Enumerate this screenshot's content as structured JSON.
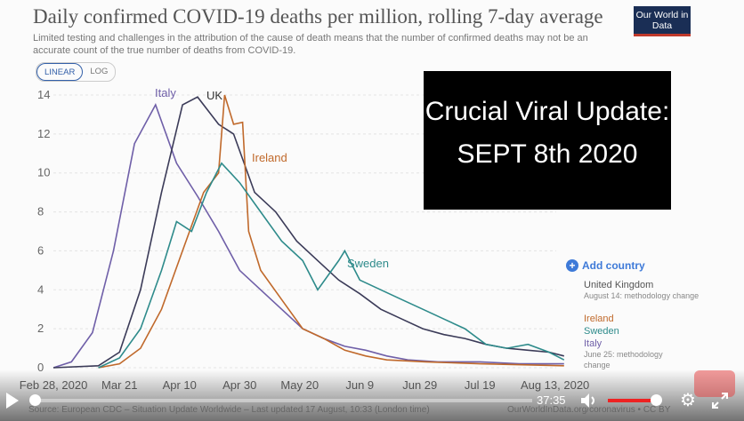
{
  "chart_data": {
    "type": "line",
    "title": "Daily confirmed COVID-19 deaths per million, rolling 7-day average",
    "subtitle": "Limited testing and challenges in the attribution of the cause of death means that the number of confirmed deaths may not be an accurate count of the true number of deaths from COVID-19.",
    "scale_options": [
      "LINEAR",
      "LOG"
    ],
    "selected_scale": "LINEAR",
    "ylim": [
      0,
      14
    ],
    "yticks": [
      "0",
      "2",
      "4",
      "6",
      "8",
      "10",
      "12",
      "14"
    ],
    "xticks": [
      [
        "2020-02-28",
        "Feb 28, 2020"
      ],
      [
        "2020-03-21",
        "Mar 21"
      ],
      [
        "2020-04-10",
        "Apr 10"
      ],
      [
        "2020-04-30",
        "Apr 30"
      ],
      [
        "2020-05-20",
        "May 20"
      ],
      [
        "2020-06-09",
        "Jun 9"
      ],
      [
        "2020-06-29",
        "Jun 29"
      ],
      [
        "2020-07-19",
        "Jul 19"
      ],
      [
        "2020-08-13",
        "Aug 13, 2020"
      ]
    ],
    "grid": true,
    "legend_placement": "right",
    "series": [
      {
        "name": "Italy",
        "color": "#6f5fa8",
        "points": [
          [
            "2020-02-28",
            0
          ],
          [
            "2020-03-05",
            0.3
          ],
          [
            "2020-03-12",
            1.8
          ],
          [
            "2020-03-19",
            6
          ],
          [
            "2020-03-26",
            11.5
          ],
          [
            "2020-04-02",
            13.5
          ],
          [
            "2020-04-09",
            10.5
          ],
          [
            "2020-04-16",
            8.8
          ],
          [
            "2020-04-23",
            7
          ],
          [
            "2020-04-30",
            5
          ],
          [
            "2020-05-07",
            4
          ],
          [
            "2020-05-14",
            3
          ],
          [
            "2020-05-21",
            2
          ],
          [
            "2020-05-28",
            1.5
          ],
          [
            "2020-06-04",
            1.1
          ],
          [
            "2020-06-11",
            0.9
          ],
          [
            "2020-06-18",
            0.6
          ],
          [
            "2020-06-25",
            0.4
          ],
          [
            "2020-07-05",
            0.3
          ],
          [
            "2020-07-19",
            0.3
          ],
          [
            "2020-08-01",
            0.2
          ],
          [
            "2020-08-16",
            0.2
          ]
        ]
      },
      {
        "name": "United Kingdom",
        "label": "UK",
        "color": "#3b3b58",
        "points": [
          [
            "2020-02-28",
            0
          ],
          [
            "2020-03-14",
            0.1
          ],
          [
            "2020-03-21",
            0.8
          ],
          [
            "2020-03-28",
            4
          ],
          [
            "2020-04-04",
            9
          ],
          [
            "2020-04-11",
            13.5
          ],
          [
            "2020-04-16",
            13.9
          ],
          [
            "2020-04-23",
            12.5
          ],
          [
            "2020-04-28",
            12
          ],
          [
            "2020-05-05",
            9
          ],
          [
            "2020-05-12",
            8
          ],
          [
            "2020-05-19",
            6.5
          ],
          [
            "2020-05-26",
            5.5
          ],
          [
            "2020-06-02",
            4.5
          ],
          [
            "2020-06-09",
            3.8
          ],
          [
            "2020-06-16",
            3
          ],
          [
            "2020-06-23",
            2.5
          ],
          [
            "2020-06-30",
            2
          ],
          [
            "2020-07-07",
            1.7
          ],
          [
            "2020-07-14",
            1.5
          ],
          [
            "2020-07-21",
            1.2
          ],
          [
            "2020-07-28",
            1
          ],
          [
            "2020-08-04",
            0.9
          ],
          [
            "2020-08-11",
            0.8
          ],
          [
            "2020-08-16",
            0.6
          ]
        ]
      },
      {
        "name": "Ireland",
        "color": "#c0692b",
        "points": [
          [
            "2020-03-14",
            0
          ],
          [
            "2020-03-21",
            0.2
          ],
          [
            "2020-03-28",
            1
          ],
          [
            "2020-04-04",
            3
          ],
          [
            "2020-04-11",
            6
          ],
          [
            "2020-04-18",
            9
          ],
          [
            "2020-04-23",
            10
          ],
          [
            "2020-04-25",
            14
          ],
          [
            "2020-04-28",
            12.5
          ],
          [
            "2020-05-01",
            12.6
          ],
          [
            "2020-05-03",
            7
          ],
          [
            "2020-05-07",
            5
          ],
          [
            "2020-05-14",
            3.5
          ],
          [
            "2020-05-21",
            2
          ],
          [
            "2020-05-28",
            1.5
          ],
          [
            "2020-06-04",
            0.9
          ],
          [
            "2020-06-11",
            0.6
          ],
          [
            "2020-06-18",
            0.4
          ],
          [
            "2020-07-01",
            0.3
          ],
          [
            "2020-07-19",
            0.2
          ],
          [
            "2020-08-16",
            0.1
          ]
        ]
      },
      {
        "name": "Sweden",
        "color": "#2e8b8b",
        "points": [
          [
            "2020-03-14",
            0
          ],
          [
            "2020-03-21",
            0.5
          ],
          [
            "2020-03-28",
            2
          ],
          [
            "2020-04-04",
            5
          ],
          [
            "2020-04-09",
            7.5
          ],
          [
            "2020-04-14",
            7
          ],
          [
            "2020-04-19",
            9
          ],
          [
            "2020-04-24",
            10.5
          ],
          [
            "2020-04-30",
            9.5
          ],
          [
            "2020-05-07",
            8
          ],
          [
            "2020-05-14",
            6.5
          ],
          [
            "2020-05-21",
            5.5
          ],
          [
            "2020-05-26",
            4
          ],
          [
            "2020-06-02",
            5.5
          ],
          [
            "2020-06-04",
            6
          ],
          [
            "2020-06-09",
            4.5
          ],
          [
            "2020-06-16",
            4
          ],
          [
            "2020-06-23",
            3.5
          ],
          [
            "2020-06-30",
            3
          ],
          [
            "2020-07-07",
            2.5
          ],
          [
            "2020-07-14",
            2
          ],
          [
            "2020-07-21",
            1.2
          ],
          [
            "2020-07-28",
            1
          ],
          [
            "2020-08-04",
            1.2
          ],
          [
            "2020-08-11",
            0.8
          ],
          [
            "2020-08-16",
            0.4
          ]
        ]
      }
    ]
  },
  "logo": "Our World in Data",
  "add_country": "Add country",
  "legend": [
    {
      "name": "United Kingdom",
      "note": "August 14: methodology change",
      "color": "#555"
    },
    {
      "name": "Ireland",
      "note": "",
      "color": "#c0692b"
    },
    {
      "name": "Sweden",
      "note": "",
      "color": "#2e8b8b"
    },
    {
      "name": "Italy",
      "note": "June 25: methodology change",
      "color": "#6f5fa8"
    }
  ],
  "overlay": {
    "line1": "Crucial Viral Update:",
    "line2": "SEPT 8th 2020"
  },
  "source": "Source: European CDC – Situation Update Worldwide – Last updated 17 August, 10:33 (London time)",
  "source_right": "OurWorldInData.org/coronavirus • CC BY",
  "player": {
    "time": "37:35",
    "progress": 0.0,
    "volume": 0.9
  }
}
